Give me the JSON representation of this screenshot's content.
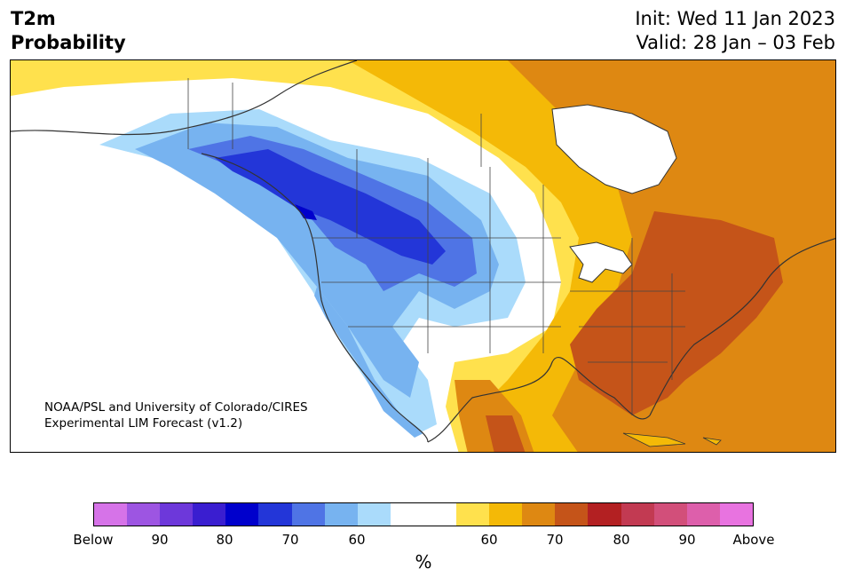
{
  "header": {
    "variable": "T2m",
    "kind": "Probability",
    "init": "Init: Wed 11 Jan 2023",
    "valid": "Valid: 28 Jan – 03 Feb"
  },
  "map": {
    "region": "North America",
    "credit_line1": "NOAA/PSL and University of Colorado/CIRES",
    "credit_line2": "Experimental LIM Forecast (v1.2)"
  },
  "colorbar": {
    "unit": "%",
    "colors": [
      "#d673e8",
      "#9d55e2",
      "#6d38da",
      "#3a1ed0",
      "#0000cc",
      "#2336d8",
      "#4f74e5",
      "#77b3f0",
      "#aadbfb",
      "#ffffff",
      "#ffffff",
      "#ffe14d",
      "#f4b907",
      "#de8812",
      "#c55419",
      "#b32022",
      "#c23a52",
      "#d24f7a",
      "#dd5fab",
      "#e873e0"
    ],
    "ticks": [
      "Below",
      "90",
      "80",
      "70",
      "60",
      "60",
      "70",
      "80",
      "90",
      "Above"
    ]
  }
}
